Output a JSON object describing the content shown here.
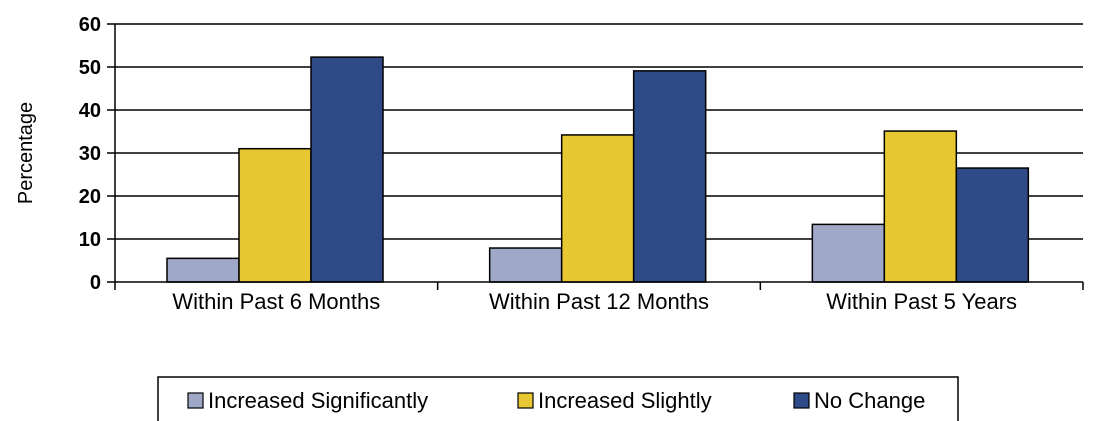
{
  "chart_data": {
    "type": "bar",
    "title": "",
    "xlabel": "",
    "ylabel": "Percentage",
    "ylim": [
      0,
      60
    ],
    "yticks": [
      0,
      10,
      20,
      30,
      40,
      50,
      60
    ],
    "grid": true,
    "legend_position": "bottom",
    "categories": [
      "Within Past 6 Months",
      "Within Past 12 Months",
      "Within Past 5 Years"
    ],
    "series": [
      {
        "name": "Increased Significantly",
        "color": "#a0a8c8",
        "values": [
          5.5,
          7.9,
          13.4
        ]
      },
      {
        "name": "Increased Slightly",
        "color": "#e8c832",
        "values": [
          31,
          34.2,
          35.1
        ]
      },
      {
        "name": "No Change",
        "color": "#2f4b87",
        "values": [
          52.3,
          49.1,
          26.5
        ]
      }
    ]
  }
}
